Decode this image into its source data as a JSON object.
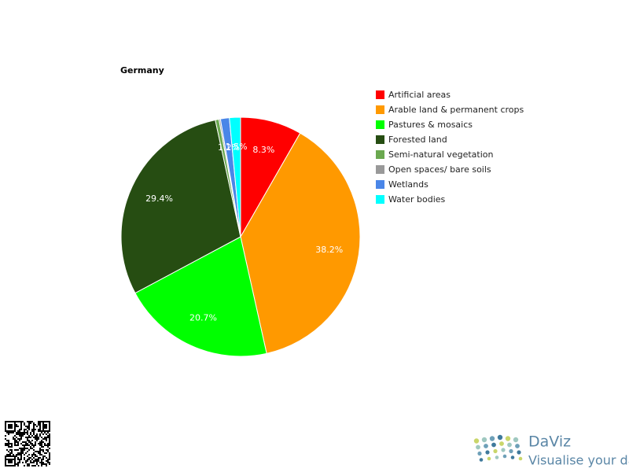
{
  "chart_data": {
    "type": "pie",
    "title": "Germany",
    "categories": [
      "Artificial areas",
      "Arable land & permanent crops",
      "Pastures & mosaics",
      "Forested land",
      "Semi-natural vegetation",
      "Open spaces/ bare soils",
      "Wetlands",
      "Water bodies"
    ],
    "values": [
      8.3,
      38.2,
      20.7,
      29.4,
      0.5,
      0.2,
      1.2,
      1.5
    ],
    "value_labels": [
      "8.3%",
      "38.2%",
      "20.7%",
      "29.4%",
      null,
      null,
      "1.2%",
      "1.5%"
    ],
    "colors": [
      "#ff0000",
      "#ff9900",
      "#00ff00",
      "#264d12",
      "#6aa84f",
      "#999999",
      "#4a86e8",
      "#00ffff"
    ],
    "legend": "right"
  },
  "branding": {
    "name": "DaViz",
    "tagline": "Visualise your data"
  }
}
